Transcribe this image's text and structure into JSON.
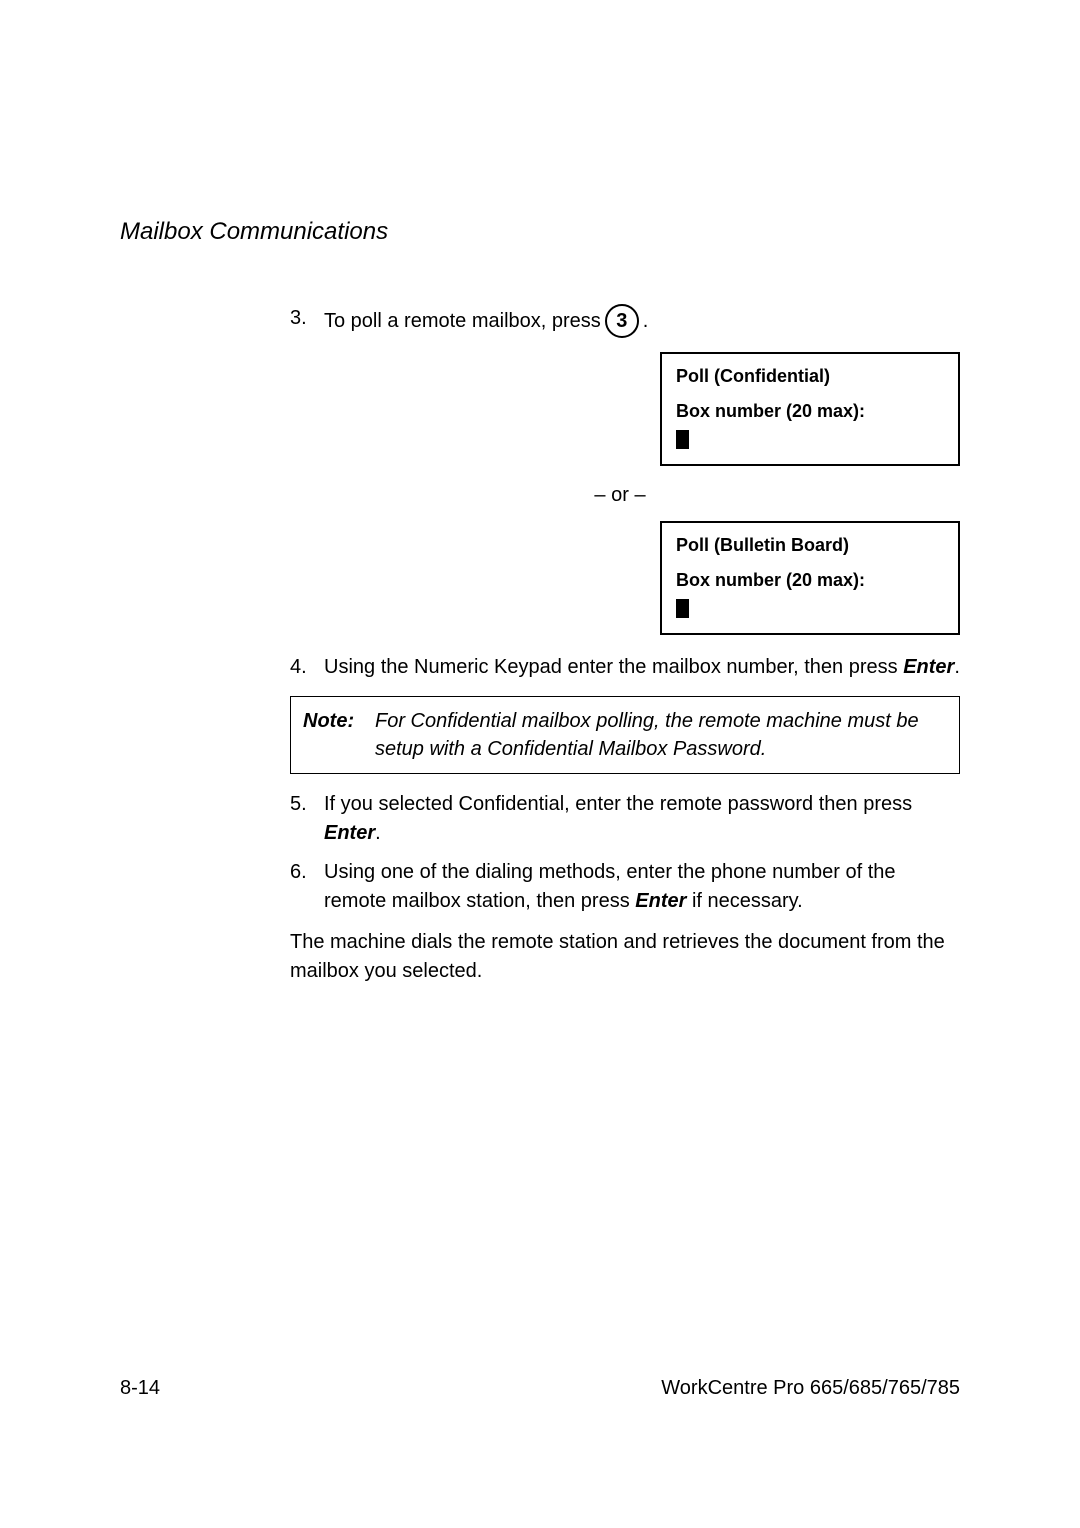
{
  "header": {
    "section_title": "Mailbox Communications"
  },
  "steps": {
    "s3": {
      "num": "3.",
      "text_before": "To poll a remote mailbox, press ",
      "key_label": "3",
      "text_after": "."
    },
    "s4": {
      "num": "4.",
      "text_before": "Using the Numeric Keypad enter the mailbox number, then press ",
      "enter_word": "Enter",
      "text_after": "."
    },
    "s5": {
      "num": "5.",
      "text_before": "If you selected Confidential, enter the remote password then press ",
      "enter_word": "Enter",
      "text_after": "."
    },
    "s6": {
      "num": "6.",
      "text_before": "Using one of the dialing methods, enter the phone number of the remote mailbox station, then press ",
      "enter_word": "Enter",
      "text_after": " if necessary."
    }
  },
  "displays": {
    "d1": {
      "line1": "Poll (Confidential)",
      "line2": "Box number (20 max):"
    },
    "d2": {
      "line1": "Poll (Bulletin Board)",
      "line2": "Box number (20 max):"
    }
  },
  "or_text": "– or –",
  "note": {
    "label": "Note:",
    "text": "For Confidential mailbox polling, the remote machine must be setup with a Confidential Mailbox Password."
  },
  "closing_para": "The machine dials the remote station and retrieves the document from the mailbox you selected.",
  "footer": {
    "left": "8-14",
    "right": "WorkCentre Pro 665/685/765/785"
  }
}
